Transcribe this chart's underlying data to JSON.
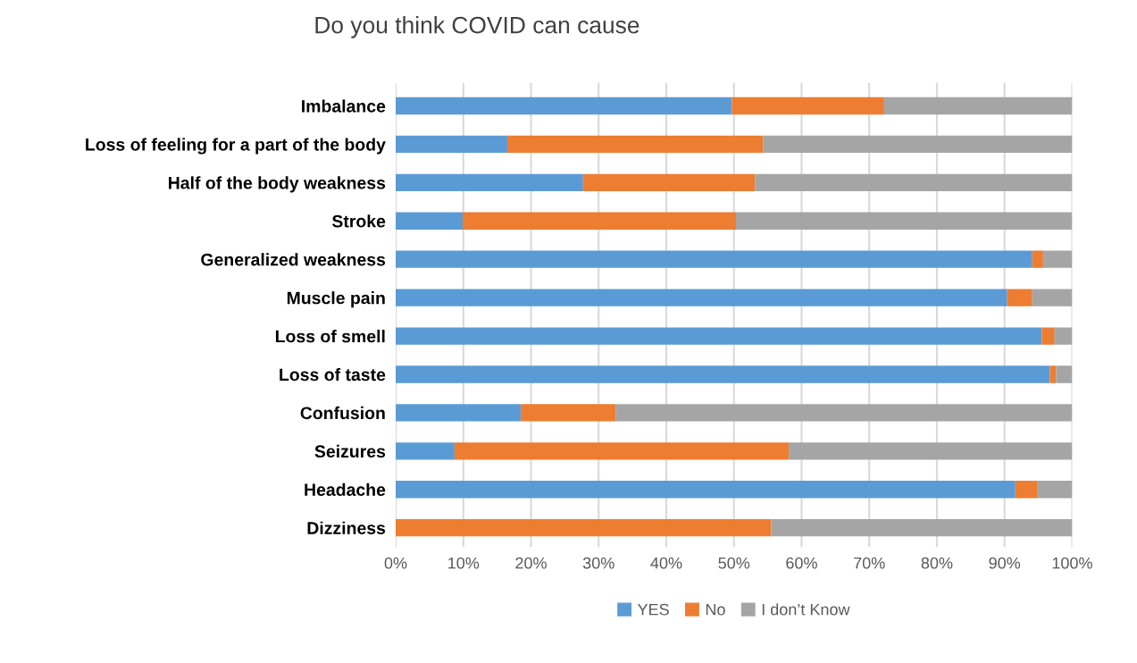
{
  "chart_data": {
    "type": "bar",
    "title": "Do you think COVID can cause",
    "orientation": "horizontal",
    "stacked": true,
    "categories": [
      "Imbalance",
      "Loss of feeling for a part of the body",
      "Half of the body weakness",
      "Stroke",
      "Generalized weakness",
      "Muscle pain",
      "Loss of smell",
      "Loss of taste",
      "Confusion",
      "Seizures",
      "Headache",
      "Dizziness"
    ],
    "series": [
      {
        "name": "YES",
        "color": "#5b9bd5",
        "values": [
          49.7,
          16.5,
          27.7,
          9.9,
          94.1,
          90.4,
          95.5,
          96.7,
          18.5,
          8.7,
          91.6,
          0
        ]
      },
      {
        "name": "No",
        "color": "#ed7d31",
        "values": [
          22.5,
          37.8,
          25.4,
          40.4,
          1.6,
          3.7,
          1.9,
          0.9,
          14.0,
          49.4,
          3.3,
          55.5
        ]
      },
      {
        "name": "I don’t Know",
        "color": "#a5a5a5",
        "values": [
          27.8,
          45.7,
          46.9,
          49.7,
          4.3,
          5.9,
          2.6,
          2.4,
          67.5,
          41.9,
          5.1,
          44.5
        ]
      }
    ],
    "xlim": [
      0,
      100
    ],
    "xticks": [
      {
        "value": 0,
        "label": "0%"
      },
      {
        "value": 10,
        "label": "10%"
      },
      {
        "value": 20,
        "label": "20%"
      },
      {
        "value": 30,
        "label": "30%"
      },
      {
        "value": 40,
        "label": "40%"
      },
      {
        "value": 50,
        "label": "50%"
      },
      {
        "value": 60,
        "label": "60%"
      },
      {
        "value": 70,
        "label": "70%"
      },
      {
        "value": 80,
        "label": "80%"
      },
      {
        "value": 90,
        "label": "90%"
      },
      {
        "value": 100,
        "label": "100%"
      }
    ],
    "grid": "x",
    "legend": "bottom"
  }
}
